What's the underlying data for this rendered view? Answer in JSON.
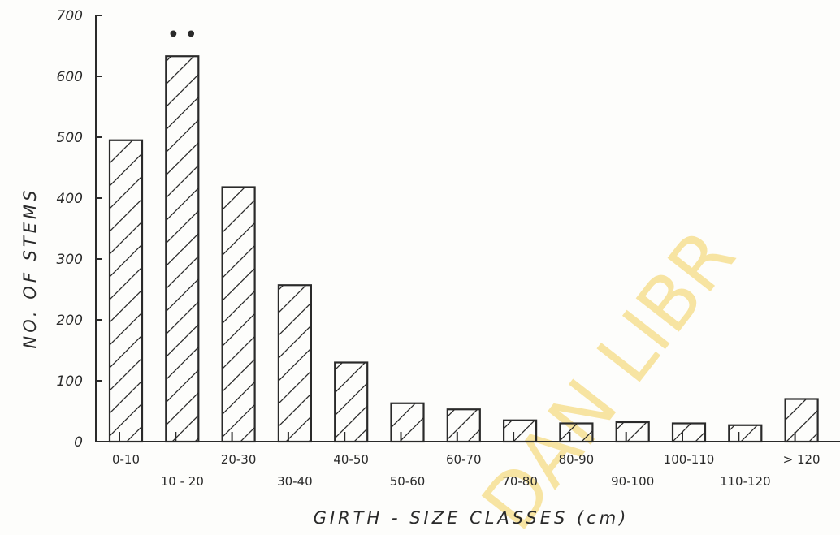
{
  "chart_data": {
    "type": "bar",
    "title": "",
    "xlabel": "GIRTH - SIZE CLASSES (cm)",
    "ylabel": "NO. OF STEMS",
    "ylim": [
      0,
      700
    ],
    "yticks": [
      0,
      100,
      200,
      300,
      400,
      500,
      600,
      700
    ],
    "categories": [
      "0-10",
      "10 - 20",
      "20-30",
      "30-40",
      "40-50",
      "50-60",
      "60-70",
      "70-80",
      "80-90",
      "90-100",
      "100-110",
      "110-120",
      "> 120"
    ],
    "values": [
      495,
      633,
      418,
      257,
      130,
      63,
      53,
      35,
      30,
      32,
      30,
      27,
      70
    ],
    "bar_fill": "diagonal-hatch",
    "grid": false,
    "annotation": "• •"
  },
  "watermark": "DAN LIBR",
  "colors": {
    "ink": "#2a2a2a",
    "watermark": "#f3d05a",
    "paper": "#fdfdfb"
  }
}
